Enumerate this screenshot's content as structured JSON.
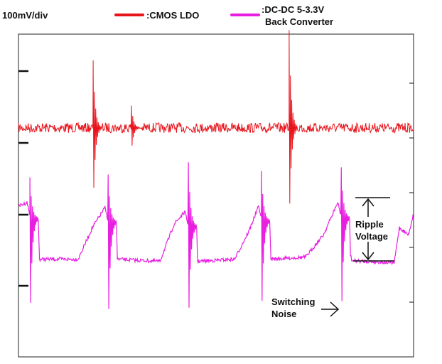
{
  "chart_data": {
    "type": "line",
    "scale_label": "100mV/div",
    "x_divisions": 10,
    "grid": false,
    "legend_placement": "top",
    "series": [
      {
        "name": ":CMOS LDO",
        "color": "#e8141c",
        "baseline": 3.19,
        "spikes": [
          {
            "x": 1.89,
            "max": 4.13,
            "min": 2.05
          },
          {
            "x": 2.86,
            "max": 3.5,
            "min": 2.85
          },
          {
            "x": 6.85,
            "max": 4.55,
            "min": 1.75
          }
        ]
      },
      {
        "name": ":DC-DC 5-3.3V Back Converter",
        "color": "#e81ee0",
        "points": [
          [
            0,
            2.1
          ],
          [
            0.22,
            2.15
          ],
          [
            0.52,
            1.36
          ],
          [
            1.51,
            1.36
          ],
          [
            1.87,
            1.8
          ],
          [
            2.19,
            2.08
          ],
          [
            2.5,
            1.36
          ],
          [
            3.58,
            1.33
          ],
          [
            3.94,
            1.85
          ],
          [
            4.21,
            2.02
          ],
          [
            4.53,
            1.33
          ],
          [
            5.47,
            1.36
          ],
          [
            5.83,
            1.75
          ],
          [
            6.08,
            2.1
          ],
          [
            6.37,
            1.36
          ],
          [
            7.27,
            1.39
          ],
          [
            7.72,
            1.7
          ],
          [
            8.08,
            2.15
          ],
          [
            8.44,
            1.34
          ],
          [
            9.51,
            1.31
          ],
          [
            9.64,
            1.8
          ],
          [
            9.87,
            1.7
          ],
          [
            10,
            2.0
          ]
        ],
        "spikes": [
          {
            "x": 0.29,
            "max": 2.5,
            "min": 0.32
          },
          {
            "x": 2.27,
            "max": 2.54,
            "min": 0.22
          },
          {
            "x": 4.3,
            "max": 2.71,
            "min": 0.27
          },
          {
            "x": 6.15,
            "max": 2.59,
            "min": 0.37
          },
          {
            "x": 8.17,
            "max": 2.64,
            "min": 0.35
          }
        ]
      }
    ],
    "annotations": {
      "ripple": [
        "Ripple",
        "Voltage"
      ],
      "noise": [
        "Switching",
        "Noise"
      ]
    }
  }
}
